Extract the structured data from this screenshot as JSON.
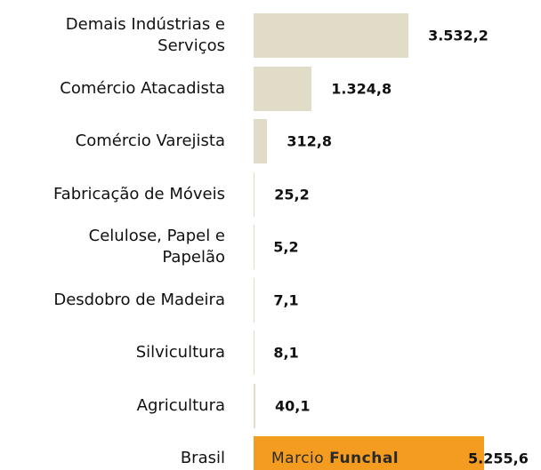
{
  "chart_data": {
    "type": "bar",
    "orientation": "horizontal",
    "categories": [
      "Demais Indústrias e\nServiços",
      "Comércio Atacadista",
      "Comércio Varejista",
      "Fabricação de Móveis",
      "Celulose, Papel e\nPapelão",
      "Desdobro de Madeira",
      "Silvicultura",
      "Agricultura",
      "Brasil"
    ],
    "values": [
      3532.2,
      1324.8,
      312.8,
      25.2,
      5.2,
      7.1,
      8.1,
      40.1,
      5255.6
    ],
    "value_labels": [
      "3.532,2",
      "1.324,8",
      "312,8",
      "25,2",
      "5,2",
      "7,1",
      "8,1",
      "40,1",
      "5.255,6"
    ],
    "colors": [
      "#e0dcc7",
      "#e0dcc7",
      "#e0dcc7",
      "#e0dcc7",
      "#e0dcc7",
      "#e0dcc7",
      "#e0dcc7",
      "#e0dcc7",
      "#f39c1f"
    ],
    "watermark": [
      "Marcio",
      "Funchal"
    ]
  }
}
